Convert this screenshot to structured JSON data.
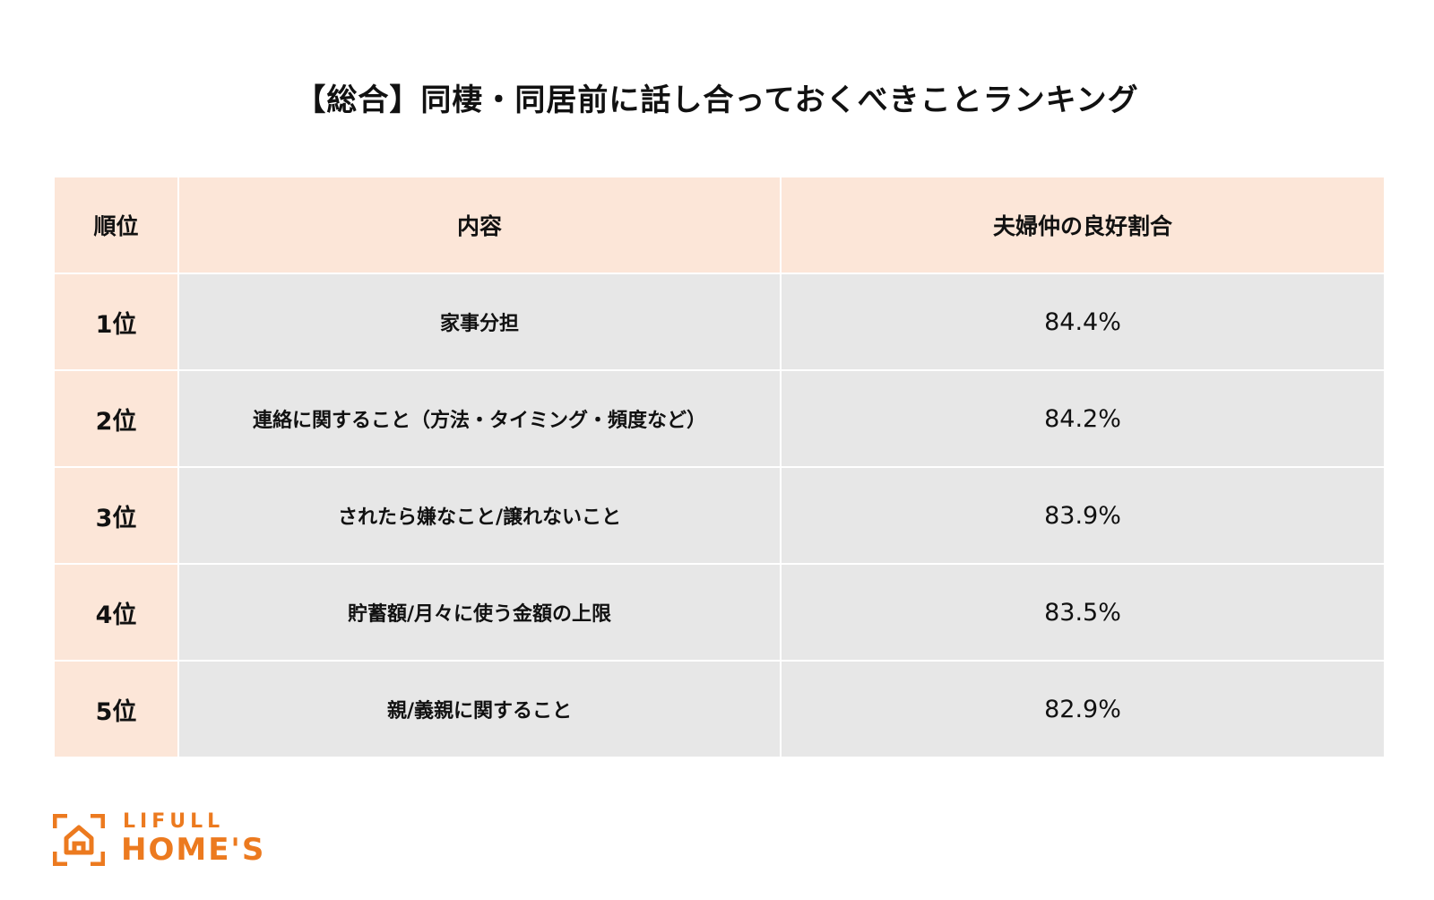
{
  "title": "【総合】同棲・同居前に話し合っておくべきことランキング",
  "chart_data": {
    "type": "table",
    "title": "【総合】同棲・同居前に話し合っておくべきことランキング",
    "columns": [
      "順位",
      "内容",
      "夫婦仲の良好割合"
    ],
    "rows": [
      {
        "rank": "1位",
        "content": "家事分担",
        "value_label": "84.4%",
        "value": 84.4
      },
      {
        "rank": "2位",
        "content": "連絡に関すること（方法・タイミング・頻度など）",
        "value_label": "84.2%",
        "value": 84.2
      },
      {
        "rank": "3位",
        "content": "されたら嫌なこと/譲れないこと",
        "value_label": "83.9%",
        "value": 83.9
      },
      {
        "rank": "4位",
        "content": "貯蓄額/月々に使う金額の上限",
        "value_label": "83.5%",
        "value": 83.5
      },
      {
        "rank": "5位",
        "content": "親/義親に関すること",
        "value_label": "82.9%",
        "value": 82.9
      }
    ]
  },
  "colors": {
    "header_bg": "#fce6d8",
    "rank_bg": "#fce6d8",
    "body_bg": "#e7e7e7",
    "brand": "#ec7a1f"
  },
  "logo": {
    "line1": "LIFULL",
    "line2": "HOME'S",
    "icon": "house-bracket-icon"
  }
}
